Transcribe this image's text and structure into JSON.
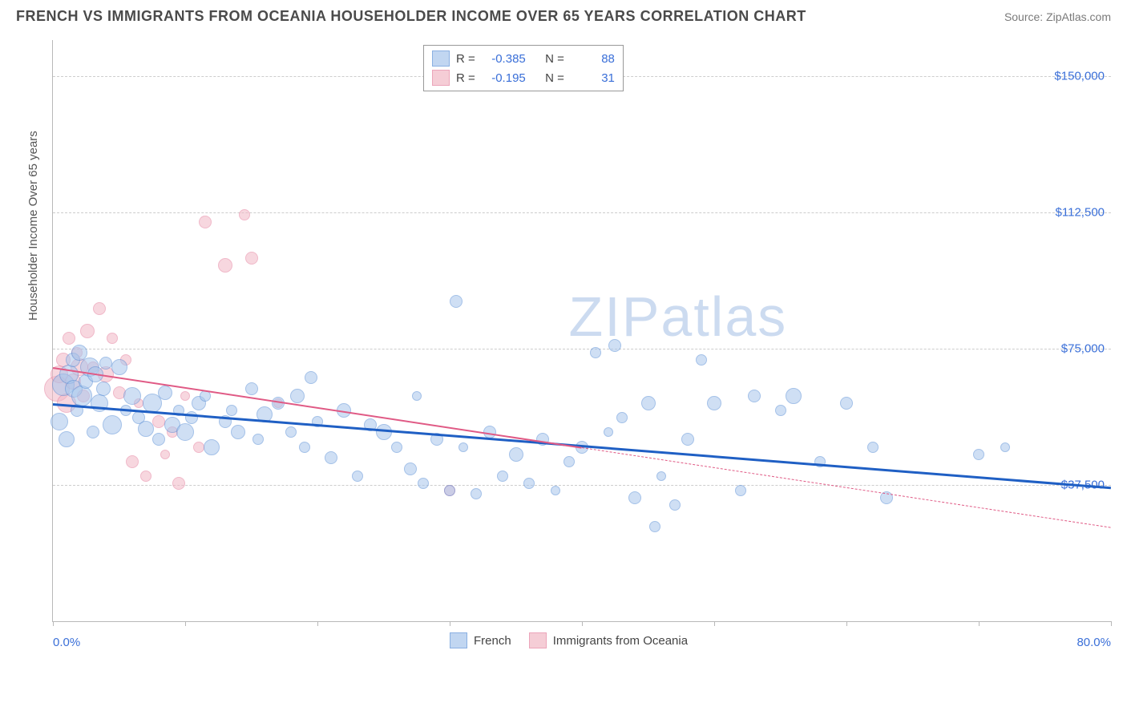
{
  "title": "FRENCH VS IMMIGRANTS FROM OCEANIA HOUSEHOLDER INCOME OVER 65 YEARS CORRELATION CHART",
  "source": "Source: ZipAtlas.com",
  "watermark": "ZIPatlas",
  "y_axis_label": "Householder Income Over 65 years",
  "chart": {
    "type": "scatter",
    "xlim": [
      0,
      80
    ],
    "ylim": [
      0,
      160000
    ],
    "x_unit": "%",
    "y_unit": "$",
    "x_end_labels": [
      "0.0%",
      "80.0%"
    ],
    "y_ticks": [
      37500,
      75000,
      112500,
      150000
    ],
    "y_tick_labels": [
      "$37,500",
      "$75,000",
      "$112,500",
      "$150,000"
    ],
    "x_ticks": [
      0,
      10,
      20,
      30,
      40,
      50,
      60,
      70,
      80
    ],
    "grid_color": "#cdcdcd",
    "background_color": "#ffffff",
    "axis_color": "#b8b8b8",
    "tick_label_color": "#3a6fd8"
  },
  "series": [
    {
      "name": "French",
      "fill": "#a8c6ec",
      "fill_opacity": 0.55,
      "stroke": "#5a8fd6",
      "R": "-0.385",
      "N": "88",
      "trend": {
        "x1": 0,
        "y1": 60000,
        "x2": 80,
        "y2": 37000,
        "color": "#1f5fc4",
        "width": 3,
        "dash": "solid",
        "extrap_from_x": null
      },
      "points": [
        [
          0.5,
          55000,
          20
        ],
        [
          0.8,
          65000,
          26
        ],
        [
          1,
          50000,
          18
        ],
        [
          1.2,
          68000,
          22
        ],
        [
          1.5,
          72000,
          16
        ],
        [
          1.6,
          64000,
          20
        ],
        [
          1.8,
          58000,
          14
        ],
        [
          2,
          74000,
          18
        ],
        [
          2.2,
          62000,
          24
        ],
        [
          2.5,
          66000,
          16
        ],
        [
          2.8,
          70000,
          22
        ],
        [
          3,
          52000,
          14
        ],
        [
          3.2,
          68000,
          18
        ],
        [
          3.5,
          60000,
          20
        ],
        [
          3.8,
          64000,
          16
        ],
        [
          4,
          71000,
          14
        ],
        [
          4.5,
          54000,
          22
        ],
        [
          5,
          70000,
          18
        ],
        [
          5.5,
          58000,
          12
        ],
        [
          6,
          62000,
          20
        ],
        [
          6.5,
          56000,
          14
        ],
        [
          7,
          53000,
          18
        ],
        [
          7.5,
          60000,
          22
        ],
        [
          8,
          50000,
          14
        ],
        [
          8.5,
          63000,
          16
        ],
        [
          9,
          54000,
          18
        ],
        [
          9.5,
          58000,
          12
        ],
        [
          10,
          52000,
          20
        ],
        [
          10.5,
          56000,
          14
        ],
        [
          11,
          60000,
          16
        ],
        [
          11.5,
          62000,
          12
        ],
        [
          12,
          48000,
          18
        ],
        [
          13,
          55000,
          14
        ],
        [
          13.5,
          58000,
          12
        ],
        [
          14,
          52000,
          16
        ],
        [
          15,
          64000,
          14
        ],
        [
          15.5,
          50000,
          12
        ],
        [
          16,
          57000,
          18
        ],
        [
          17,
          60000,
          14
        ],
        [
          18,
          52000,
          12
        ],
        [
          18.5,
          62000,
          16
        ],
        [
          19,
          48000,
          12
        ],
        [
          19.5,
          67000,
          14
        ],
        [
          20,
          55000,
          12
        ],
        [
          21,
          45000,
          14
        ],
        [
          22,
          58000,
          16
        ],
        [
          23,
          40000,
          12
        ],
        [
          24,
          54000,
          14
        ],
        [
          25,
          52000,
          18
        ],
        [
          26,
          48000,
          12
        ],
        [
          27,
          42000,
          14
        ],
        [
          27.5,
          62000,
          10
        ],
        [
          28,
          38000,
          12
        ],
        [
          29,
          50000,
          14
        ],
        [
          30,
          36000,
          12
        ],
        [
          30.5,
          88000,
          14
        ],
        [
          31,
          48000,
          10
        ],
        [
          32,
          35000,
          12
        ],
        [
          33,
          52000,
          14
        ],
        [
          34,
          40000,
          12
        ],
        [
          35,
          46000,
          16
        ],
        [
          36,
          38000,
          12
        ],
        [
          37,
          50000,
          14
        ],
        [
          38,
          36000,
          10
        ],
        [
          39,
          44000,
          12
        ],
        [
          40,
          48000,
          14
        ],
        [
          41,
          74000,
          12
        ],
        [
          42,
          52000,
          10
        ],
        [
          42.5,
          76000,
          14
        ],
        [
          43,
          56000,
          12
        ],
        [
          44,
          34000,
          14
        ],
        [
          45,
          60000,
          16
        ],
        [
          45.5,
          26000,
          12
        ],
        [
          46,
          40000,
          10
        ],
        [
          47,
          32000,
          12
        ],
        [
          48,
          50000,
          14
        ],
        [
          49,
          72000,
          12
        ],
        [
          50,
          60000,
          16
        ],
        [
          52,
          36000,
          12
        ],
        [
          53,
          62000,
          14
        ],
        [
          55,
          58000,
          12
        ],
        [
          56,
          62000,
          18
        ],
        [
          58,
          44000,
          12
        ],
        [
          60,
          60000,
          14
        ],
        [
          62,
          48000,
          12
        ],
        [
          63,
          34000,
          14
        ],
        [
          70,
          46000,
          12
        ],
        [
          72,
          48000,
          10
        ]
      ]
    },
    {
      "name": "Immigrants from Oceania",
      "fill": "#f2b8c6",
      "fill_opacity": 0.55,
      "stroke": "#e57f9d",
      "R": "-0.195",
      "N": "31",
      "trend": {
        "x1": 0,
        "y1": 70000,
        "x2": 40,
        "y2": 48000,
        "color": "#e05a85",
        "width": 2,
        "dash": "solid",
        "extrap_from_x": 40,
        "extrap_x2": 80,
        "extrap_y2": 26000,
        "extrap_dash": "dashed"
      },
      "points": [
        [
          0.3,
          64000,
          30
        ],
        [
          0.5,
          68000,
          20
        ],
        [
          0.8,
          72000,
          16
        ],
        [
          1,
          60000,
          22
        ],
        [
          1.2,
          78000,
          14
        ],
        [
          1.5,
          66000,
          18
        ],
        [
          1.8,
          74000,
          12
        ],
        [
          2,
          70000,
          20
        ],
        [
          2.3,
          62000,
          14
        ],
        [
          2.6,
          80000,
          16
        ],
        [
          3,
          70000,
          12
        ],
        [
          3.5,
          86000,
          14
        ],
        [
          4,
          68000,
          18
        ],
        [
          4.5,
          78000,
          12
        ],
        [
          5,
          63000,
          14
        ],
        [
          5.5,
          72000,
          12
        ],
        [
          6,
          44000,
          14
        ],
        [
          6.5,
          60000,
          10
        ],
        [
          7,
          40000,
          12
        ],
        [
          8,
          55000,
          14
        ],
        [
          8.5,
          46000,
          10
        ],
        [
          9,
          52000,
          12
        ],
        [
          9.5,
          38000,
          14
        ],
        [
          10,
          62000,
          10
        ],
        [
          11,
          48000,
          12
        ],
        [
          11.5,
          110000,
          14
        ],
        [
          13,
          98000,
          16
        ],
        [
          14.5,
          112000,
          12
        ],
        [
          15,
          100000,
          14
        ],
        [
          17,
          60000,
          10
        ],
        [
          30,
          36000,
          12
        ]
      ]
    }
  ],
  "top_legend": {
    "labels": [
      "R =",
      "N ="
    ]
  },
  "bottom_legend": [
    "French",
    "Immigrants from Oceania"
  ]
}
